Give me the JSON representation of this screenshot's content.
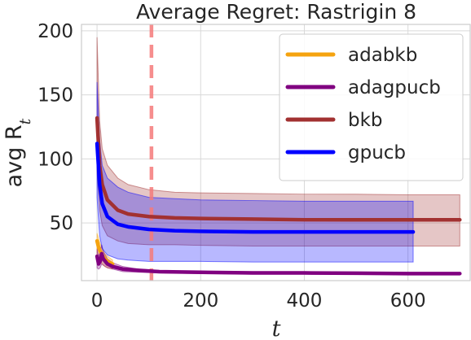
{
  "chart_data": {
    "type": "line",
    "title": "Average Regret: Rastrigin 8",
    "xlabel": "t",
    "ylabel": "avg R",
    "ylabel_sub": "t",
    "xlim": [
      -30,
      720
    ],
    "ylim": [
      5,
      205
    ],
    "xticks": [
      0,
      200,
      400,
      600
    ],
    "yticks": [
      50,
      100,
      150,
      200
    ],
    "grid": true,
    "legend_position": "top-right",
    "vline": {
      "x": 105,
      "color": "#f47a7a"
    },
    "series": [
      {
        "name": "adabkb",
        "color": "#f5a30f",
        "x": [
          0,
          3,
          6,
          10,
          15,
          20,
          30
        ],
        "y": [
          36,
          31,
          28,
          25,
          22,
          20,
          18
        ],
        "lower": [
          25,
          22,
          20,
          18,
          16,
          15,
          14
        ],
        "upper": [
          42,
          38,
          34,
          30,
          26,
          24,
          21
        ]
      },
      {
        "name": "adagpucb",
        "color": "#800080",
        "x": [
          0,
          3,
          6,
          9,
          12,
          20,
          30,
          50,
          80,
          120,
          200,
          300,
          400,
          500,
          600,
          700
        ],
        "y": [
          24,
          18,
          20,
          26,
          22,
          18,
          16,
          14,
          13,
          12,
          11.5,
          11,
          11,
          10.8,
          10.5,
          10.5
        ],
        "lower": [
          15,
          14,
          15,
          18,
          17,
          15,
          14,
          12,
          11.5,
          11,
          10.5,
          10,
          10,
          10,
          10,
          10
        ],
        "upper": [
          30,
          24,
          28,
          33,
          28,
          22,
          19,
          16,
          14,
          13,
          12,
          12,
          11.8,
          11.5,
          11,
          11
        ]
      },
      {
        "name": "bkb",
        "color": "#a23131",
        "x": [
          0,
          5,
          10,
          20,
          40,
          60,
          100,
          150,
          200,
          300,
          400,
          500,
          600,
          700
        ],
        "y": [
          132,
          95,
          80,
          68,
          60,
          57,
          55,
          54,
          53.5,
          53,
          52.5,
          52.5,
          52.5,
          52.5
        ],
        "lower": [
          90,
          60,
          48,
          40,
          36,
          34,
          33,
          33,
          32.5,
          32,
          32,
          32,
          32,
          32
        ],
        "upper": [
          195,
          130,
          108,
          95,
          85,
          80,
          76,
          74,
          73.5,
          73,
          72.5,
          72.5,
          72,
          72
        ]
      },
      {
        "name": "gpucb",
        "color": "#0000ff",
        "x": [
          0,
          5,
          10,
          20,
          40,
          60,
          100,
          150,
          200,
          300,
          400,
          500,
          600,
          610
        ],
        "y": [
          112,
          80,
          65,
          55,
          49,
          47,
          45,
          44,
          43.5,
          43,
          43,
          43,
          43,
          43
        ],
        "lower": [
          70,
          40,
          30,
          25,
          22,
          21,
          20,
          20,
          20,
          19.5,
          19.5,
          19.5,
          19.5,
          19.5
        ],
        "upper": [
          160,
          115,
          95,
          85,
          78,
          74,
          70,
          69,
          68,
          67.5,
          67,
          67,
          67,
          67
        ]
      }
    ]
  }
}
